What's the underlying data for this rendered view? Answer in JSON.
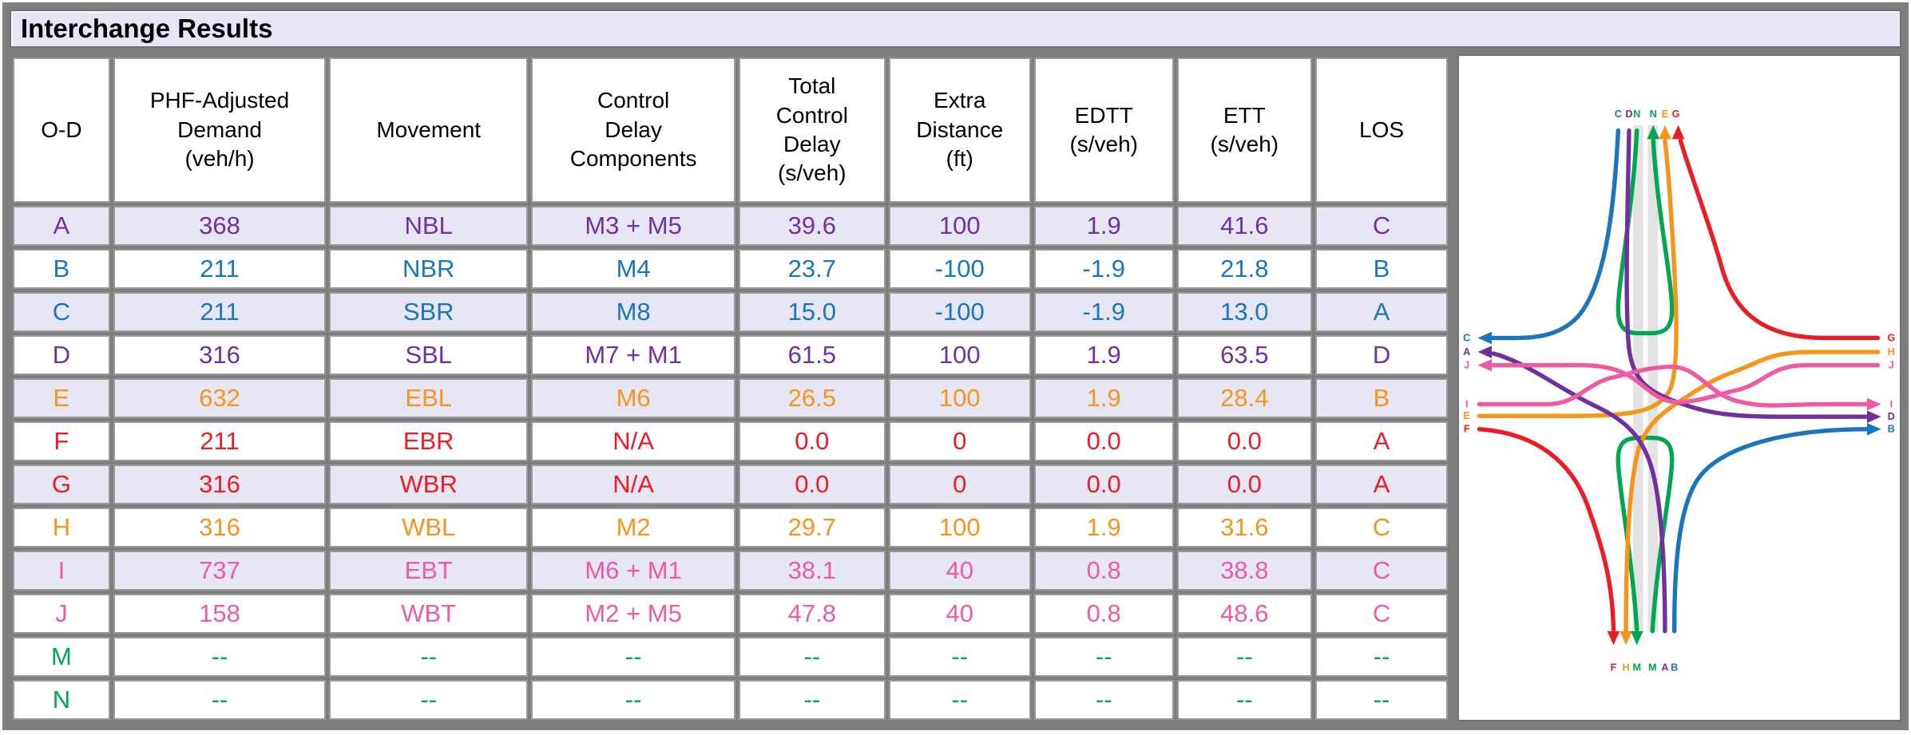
{
  "title": "Interchange Results",
  "palette": {
    "purple": "#7030A0",
    "blue": "#1B75BC",
    "orange": "#F7941E",
    "red": "#ED1C24",
    "pink": "#EF5BA1",
    "green": "#00A651",
    "row_shade": "#E6E6F5",
    "row_plain": "#FFFFFF",
    "title_bg": "#E6E6F5",
    "frame_gray": "#7E7E7E",
    "cell_border": "#9A9A9A",
    "freeway_band": "#E3E3E3"
  },
  "table": {
    "headers": [
      {
        "lines": [
          "O-D"
        ]
      },
      {
        "lines": [
          "PHF-Adjusted",
          "Demand",
          "(veh/h)"
        ]
      },
      {
        "lines": [
          "Movement"
        ]
      },
      {
        "lines": [
          "Control",
          "Delay",
          "Components"
        ]
      },
      {
        "lines": [
          "Total",
          "Control",
          "Delay",
          "(s/veh)"
        ]
      },
      {
        "lines": [
          "Extra",
          "Distance",
          "(ft)"
        ]
      },
      {
        "lines": [
          "EDTT",
          "(s/veh)"
        ]
      },
      {
        "lines": [
          "ETT",
          "(s/veh)"
        ]
      },
      {
        "lines": [
          "LOS"
        ]
      }
    ],
    "rows": [
      {
        "od": "A",
        "demand": "368",
        "movement": "NBL",
        "components": "M3 + M5",
        "delay": "39.6",
        "distance": "100",
        "edtt": "1.9",
        "ett": "41.6",
        "los": "C",
        "color": "purple",
        "shaded": true
      },
      {
        "od": "B",
        "demand": "211",
        "movement": "NBR",
        "components": "M4",
        "delay": "23.7",
        "distance": "-100",
        "edtt": "-1.9",
        "ett": "21.8",
        "los": "B",
        "color": "blue",
        "shaded": false
      },
      {
        "od": "C",
        "demand": "211",
        "movement": "SBR",
        "components": "M8",
        "delay": "15.0",
        "distance": "-100",
        "edtt": "-1.9",
        "ett": "13.0",
        "los": "A",
        "color": "blue",
        "shaded": true
      },
      {
        "od": "D",
        "demand": "316",
        "movement": "SBL",
        "components": "M7 + M1",
        "delay": "61.5",
        "distance": "100",
        "edtt": "1.9",
        "ett": "63.5",
        "los": "D",
        "color": "purple",
        "shaded": false
      },
      {
        "od": "E",
        "demand": "632",
        "movement": "EBL",
        "components": "M6",
        "delay": "26.5",
        "distance": "100",
        "edtt": "1.9",
        "ett": "28.4",
        "los": "B",
        "color": "orange",
        "shaded": true
      },
      {
        "od": "F",
        "demand": "211",
        "movement": "EBR",
        "components": "N/A",
        "delay": "0.0",
        "distance": "0",
        "edtt": "0.0",
        "ett": "0.0",
        "los": "A",
        "color": "red",
        "shaded": false
      },
      {
        "od": "G",
        "demand": "316",
        "movement": "WBR",
        "components": "N/A",
        "delay": "0.0",
        "distance": "0",
        "edtt": "0.0",
        "ett": "0.0",
        "los": "A",
        "color": "red",
        "shaded": true
      },
      {
        "od": "H",
        "demand": "316",
        "movement": "WBL",
        "components": "M2",
        "delay": "29.7",
        "distance": "100",
        "edtt": "1.9",
        "ett": "31.6",
        "los": "C",
        "color": "orange",
        "shaded": false
      },
      {
        "od": "I",
        "demand": "737",
        "movement": "EBT",
        "components": "M6 + M1",
        "delay": "38.1",
        "distance": "40",
        "edtt": "0.8",
        "ett": "38.8",
        "los": "C",
        "color": "pink",
        "shaded": true
      },
      {
        "od": "J",
        "demand": "158",
        "movement": "WBT",
        "components": "M2 + M5",
        "delay": "47.8",
        "distance": "40",
        "edtt": "0.8",
        "ett": "48.6",
        "los": "C",
        "color": "pink",
        "shaded": false
      },
      {
        "od": "M",
        "demand": "--",
        "movement": "--",
        "components": "--",
        "delay": "--",
        "distance": "--",
        "edtt": "--",
        "ett": "--",
        "los": "--",
        "color": "green",
        "shaded": false
      },
      {
        "od": "N",
        "demand": "--",
        "movement": "--",
        "components": "--",
        "delay": "--",
        "distance": "--",
        "edtt": "--",
        "ett": "--",
        "los": "--",
        "color": "green",
        "shaded": false
      }
    ]
  },
  "diagram": {
    "labels": {
      "top": [
        "C",
        "D",
        "N",
        "N",
        "E",
        "G"
      ],
      "bottom": [
        "F",
        "H",
        "M",
        "M",
        "A",
        "B"
      ],
      "left": [
        "C",
        "A",
        "J",
        "I",
        "E",
        "F"
      ],
      "right": [
        "G",
        "H",
        "J",
        "I",
        "D",
        "B"
      ]
    },
    "letter_colors": {
      "A": "purple",
      "B": "blue",
      "C": "blue",
      "D": "purple",
      "E": "orange",
      "F": "red",
      "G": "red",
      "H": "orange",
      "I": "pink",
      "J": "pink",
      "M": "green",
      "N": "green"
    }
  }
}
